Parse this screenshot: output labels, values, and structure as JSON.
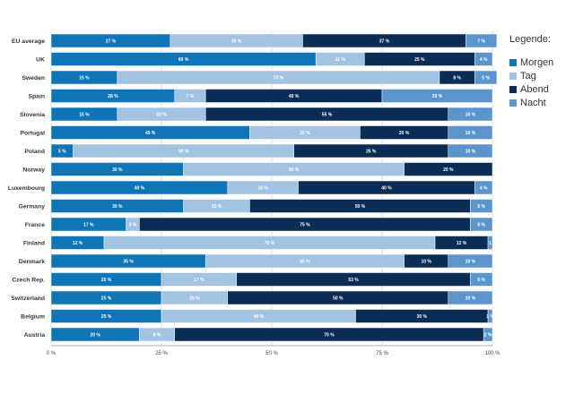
{
  "chart_data": {
    "type": "bar",
    "orientation": "horizontal",
    "stacked": true,
    "title": "",
    "xlabel": "",
    "ylabel": "",
    "xlim": [
      0,
      100
    ],
    "x_tick_labels": [
      "0 %",
      "25 %",
      "50 %",
      "75 %",
      "100 %"
    ],
    "grid": true,
    "legend_placement": "right",
    "legend_title": "Legende:",
    "categories": [
      "EU average",
      "UK",
      "Sweden",
      "Spain",
      "Slovenia",
      "Portugal",
      "Poland",
      "Norway",
      "Luxembourg",
      "Germany",
      "France",
      "Finland",
      "Denmark",
      "Czech Rep.",
      "Switzerland",
      "Belgium",
      "Austria"
    ],
    "series": [
      {
        "name": "Morgen",
        "color": "#0f75b6",
        "values": [
          27,
          60,
          15,
          28,
          15,
          45,
          5,
          30,
          40,
          30,
          17,
          12,
          35,
          25,
          25,
          25,
          20
        ],
        "labels": [
          "27 %",
          "60 %",
          "15 %",
          "28 %",
          "15 %",
          "45 %",
          "5 %",
          "30 %",
          "40 %",
          "30 %",
          "17 %",
          "12 %",
          "35 %",
          "25 %",
          "25 %",
          "25 %",
          "20 %"
        ]
      },
      {
        "name": "Tag",
        "color": "#a3c3e3",
        "values": [
          30,
          11,
          73,
          7,
          20,
          25,
          50,
          50,
          16,
          15,
          3,
          75,
          45,
          17,
          15,
          44,
          8
        ],
        "labels": [
          "30 %",
          "11 %",
          "73 %",
          "7 %",
          "20 %",
          "25 %",
          "50 %",
          "50 %",
          "16 %",
          "15 %",
          "3 %",
          "75 %",
          "45 %",
          "17 %",
          "15 %",
          "44 %",
          "8 %"
        ]
      },
      {
        "name": "Abend",
        "color": "#0b2d55",
        "values": [
          37,
          25,
          8,
          40,
          55,
          20,
          35,
          20,
          40,
          50,
          75,
          12,
          10,
          53,
          50,
          30,
          70
        ],
        "labels": [
          "37 %",
          "25 %",
          "8 %",
          "40 %",
          "55 %",
          "20 %",
          "35 %",
          "20 %",
          "40 %",
          "50 %",
          "75 %",
          "12 %",
          "10 %",
          "53 %",
          "50 %",
          "30 %",
          "70 %"
        ]
      },
      {
        "name": "Nacht",
        "color": "#5c95cc",
        "values": [
          7,
          4,
          5,
          25,
          10,
          10,
          10,
          0,
          4,
          5,
          5,
          1,
          10,
          5,
          10,
          1,
          2
        ],
        "labels": [
          "7 %",
          "4 %",
          "5 %",
          "25 %",
          "10 %",
          "10 %",
          "10 %",
          "",
          "4 %",
          "5 %",
          "5 %",
          "1",
          "10 %",
          "5 %",
          "10 %",
          "1 %",
          "2 %"
        ]
      }
    ]
  },
  "legend": {
    "title": "Legende:",
    "items": [
      {
        "label": "Morgen",
        "color": "#0f75b6"
      },
      {
        "label": "Tag",
        "color": "#a3c3e3"
      },
      {
        "label": "Abend",
        "color": "#0b2d55"
      },
      {
        "label": "Nacht",
        "color": "#5c95cc"
      }
    ]
  }
}
